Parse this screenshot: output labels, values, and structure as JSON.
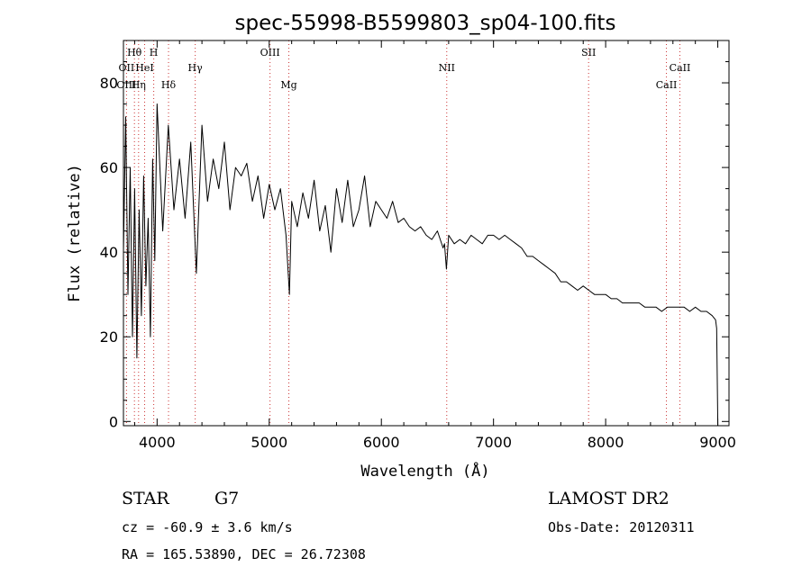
{
  "chart_data": {
    "type": "line",
    "title": "spec-55998-B5599803_sp04-100.fits",
    "xlabel": "Wavelength (Å)",
    "ylabel": "Flux (relative)",
    "xlim": [
      3700,
      9100
    ],
    "ylim": [
      -1,
      90
    ],
    "x_ticks": [
      4000,
      5000,
      6000,
      7000,
      8000,
      9000
    ],
    "x_tick_labels": [
      "4000",
      "5000",
      "6000",
      "7000",
      "8000",
      "9000"
    ],
    "y_ticks": [
      0,
      20,
      40,
      60,
      80
    ],
    "y_tick_labels": [
      "0",
      "20",
      "40",
      "60",
      "80"
    ],
    "grid": false,
    "line_color": "#000000",
    "marker_color": "#cc3333",
    "line_markers": [
      {
        "label": "Hθ",
        "x": 3798,
        "row": 0
      },
      {
        "label": "H",
        "x": 3970,
        "row": 0
      },
      {
        "label": "OII",
        "x": 3727,
        "row": 1
      },
      {
        "label": "HeI",
        "x": 3889,
        "row": 1
      },
      {
        "label": "Hγ",
        "x": 4340,
        "row": 1
      },
      {
        "label": "OIII",
        "x": 3727,
        "row": 2
      },
      {
        "label": "Hη",
        "x": 3835,
        "row": 2
      },
      {
        "label": "Hδ",
        "x": 4102,
        "row": 2
      },
      {
        "label": "OIII",
        "x": 5007,
        "row": -1
      },
      {
        "label": "Mg",
        "x": 5175,
        "row": 2
      },
      {
        "label": "NII",
        "x": 6583,
        "row": 1
      },
      {
        "label": "SII",
        "x": 7848,
        "row": -1
      },
      {
        "label": "CaII",
        "x": 8542,
        "row": 2
      },
      {
        "label": "CaII",
        "x": 8662,
        "row": 1
      }
    ],
    "marker_lines_x": [
      3727,
      3798,
      3835,
      3889,
      3970,
      4102,
      4340,
      5007,
      5175,
      6583,
      7848,
      8542,
      8662
    ],
    "series": [
      {
        "name": "flux",
        "x": [
          3700,
          3720,
          3740,
          3760,
          3780,
          3800,
          3820,
          3840,
          3860,
          3880,
          3900,
          3920,
          3940,
          3960,
          3980,
          4000,
          4050,
          4100,
          4150,
          4200,
          4250,
          4300,
          4350,
          4400,
          4450,
          4500,
          4550,
          4600,
          4650,
          4700,
          4750,
          4800,
          4850,
          4900,
          4950,
          5000,
          5050,
          5100,
          5150,
          5180,
          5200,
          5250,
          5300,
          5350,
          5400,
          5450,
          5500,
          5550,
          5600,
          5650,
          5700,
          5750,
          5800,
          5850,
          5900,
          5950,
          6000,
          6050,
          6100,
          6150,
          6200,
          6250,
          6300,
          6350,
          6400,
          6450,
          6500,
          6550,
          6563,
          6580,
          6600,
          6650,
          6700,
          6750,
          6800,
          6850,
          6900,
          6950,
          7000,
          7050,
          7100,
          7150,
          7200,
          7250,
          7300,
          7350,
          7400,
          7450,
          7500,
          7550,
          7600,
          7650,
          7700,
          7750,
          7800,
          7850,
          7900,
          7950,
          8000,
          8050,
          8100,
          8150,
          8200,
          8250,
          8300,
          8350,
          8400,
          8450,
          8500,
          8550,
          8600,
          8650,
          8700,
          8750,
          8800,
          8850,
          8900,
          8950,
          8980,
          8990,
          9000
        ],
        "values": [
          40,
          72,
          30,
          60,
          20,
          55,
          15,
          50,
          25,
          58,
          32,
          48,
          20,
          62,
          38,
          75,
          45,
          70,
          50,
          62,
          48,
          66,
          35,
          70,
          52,
          62,
          55,
          66,
          50,
          60,
          58,
          61,
          52,
          58,
          48,
          56,
          50,
          55,
          44,
          30,
          52,
          46,
          54,
          48,
          57,
          45,
          51,
          40,
          55,
          47,
          57,
          46,
          50,
          58,
          46,
          52,
          50,
          48,
          52,
          47,
          48,
          46,
          45,
          46,
          44,
          43,
          45,
          41,
          42,
          36,
          44,
          42,
          43,
          42,
          44,
          43,
          42,
          44,
          44,
          43,
          44,
          43,
          42,
          41,
          39,
          39,
          38,
          37,
          36,
          35,
          33,
          33,
          32,
          31,
          32,
          31,
          30,
          30,
          30,
          29,
          29,
          28,
          28,
          28,
          28,
          27,
          27,
          27,
          26,
          27,
          27,
          27,
          27,
          26,
          27,
          26,
          26,
          25,
          24,
          22,
          -1
        ]
      }
    ]
  },
  "footer": {
    "object_type": "STAR",
    "subclass": "G7",
    "survey": "LAMOST DR2",
    "redshift_line": "cz = -60.9 ± 3.6 km/s",
    "obs_date": "Obs-Date: 20120311",
    "coords": "RA = 165.53890, DEC =  26.72308"
  }
}
